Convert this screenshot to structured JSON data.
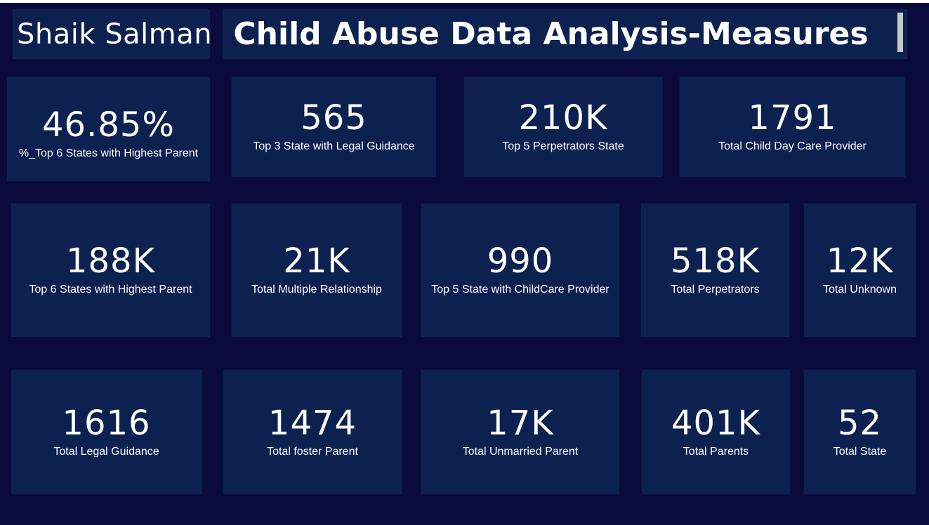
{
  "header": {
    "author": "Shaik Salman",
    "title": "Child Abuse Data Analysis-Measures"
  },
  "cards": [
    {
      "value": "46.85%",
      "label": "%_Top 6  States with Highest Parent"
    },
    {
      "value": "565",
      "label": "Top 3 State with Legal Guidance"
    },
    {
      "value": "210K",
      "label": "Top 5 Perpetrators State"
    },
    {
      "value": "1791",
      "label": "Total Child Day Care Provider"
    },
    {
      "value": "188K",
      "label": "Top 6  States with Highest Parent"
    },
    {
      "value": "21K",
      "label": "Total Multiple Relationship"
    },
    {
      "value": "990",
      "label": "Top 5 State with ChildCare Provider"
    },
    {
      "value": "518K",
      "label": "Total Perpetrators"
    },
    {
      "value": "12K",
      "label": "Total Unknown"
    },
    {
      "value": "1616",
      "label": "Total Legal Guidance"
    },
    {
      "value": "1474",
      "label": "Total foster Parent"
    },
    {
      "value": "17K",
      "label": "Total Unmarried Parent"
    },
    {
      "value": "401K",
      "label": "Total Parents"
    },
    {
      "value": "52",
      "label": "Total State"
    }
  ],
  "colors": {
    "background": "#0a0a3c",
    "card": "#0c2150",
    "text": "#ffffff"
  }
}
